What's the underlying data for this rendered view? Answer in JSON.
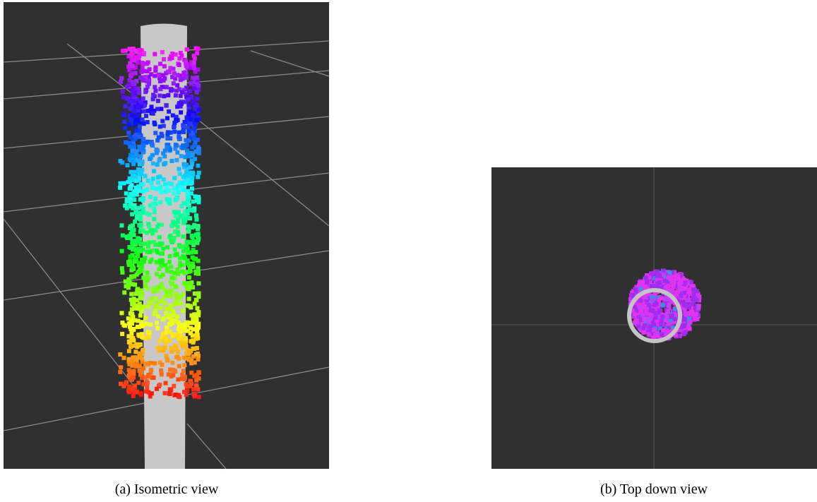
{
  "figures": [
    {
      "caption": "(a) Isometric view"
    },
    {
      "caption": "(b) Top down view"
    }
  ]
}
